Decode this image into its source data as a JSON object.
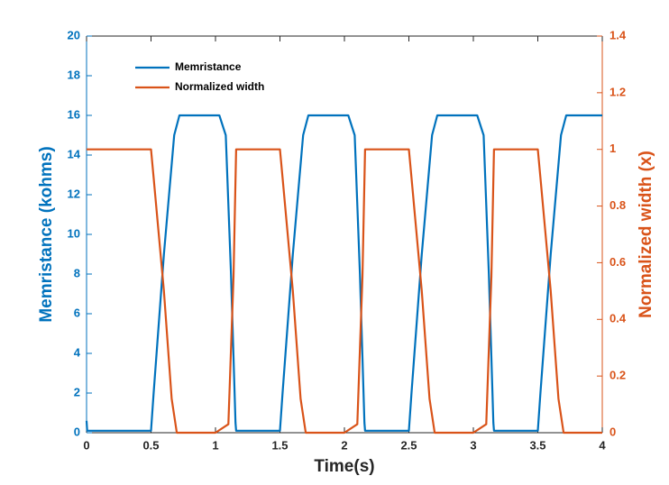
{
  "chart_data": {
    "type": "line",
    "title": "",
    "xlabel": "Time(s)",
    "ylabel_left": "Memristance (kohms)",
    "ylabel_right": "Normalized width (x)",
    "xlim": [
      0,
      4
    ],
    "ylim_left": [
      0,
      20
    ],
    "ylim_right": [
      0,
      1.4
    ],
    "x_ticks": [
      "0",
      "0.5",
      "1",
      "1.5",
      "2",
      "2.5",
      "3",
      "3.5",
      "4"
    ],
    "y_left_ticks": [
      "0",
      "2",
      "4",
      "6",
      "8",
      "10",
      "12",
      "14",
      "16",
      "18",
      "20"
    ],
    "y_right_ticks": [
      "0",
      "0.2",
      "0.4",
      "0.6",
      "0.8",
      "1",
      "1.2",
      "1.4"
    ],
    "grid": false,
    "legend_position": "top-left",
    "series": [
      {
        "name": "Memristance",
        "axis": "left",
        "color": "#0072bd",
        "x": [
          0,
          0.005,
          0.02,
          0.5,
          0.52,
          0.6,
          0.68,
          0.72,
          1.03,
          1.08,
          1.12,
          1.155,
          1.16,
          1.5,
          1.52,
          1.6,
          1.68,
          1.72,
          2.03,
          2.08,
          2.12,
          2.155,
          2.16,
          2.5,
          2.52,
          2.6,
          2.68,
          2.72,
          3.03,
          3.08,
          3.12,
          3.155,
          3.16,
          3.5,
          3.52,
          3.6,
          3.68,
          3.72,
          4.0
        ],
        "y": [
          0.6,
          0.1,
          0.1,
          0.1,
          2.0,
          9.0,
          15.0,
          16.0,
          16.0,
          15.0,
          8.0,
          0.5,
          0.1,
          0.1,
          2.0,
          9.0,
          15.0,
          16.0,
          16.0,
          15.0,
          8.0,
          0.5,
          0.1,
          0.1,
          2.0,
          9.0,
          15.0,
          16.0,
          16.0,
          15.0,
          8.0,
          0.5,
          0.1,
          0.1,
          2.0,
          9.0,
          15.0,
          16.0,
          16.0
        ]
      },
      {
        "name": "Normalized width",
        "axis": "right",
        "color": "#d95319",
        "x": [
          0,
          0.5,
          0.52,
          0.6,
          0.66,
          0.7,
          1.0,
          1.1,
          1.14,
          1.16,
          1.5,
          1.52,
          1.6,
          1.66,
          1.7,
          2.0,
          2.1,
          2.14,
          2.16,
          2.5,
          2.52,
          2.6,
          2.66,
          2.7,
          3.0,
          3.1,
          3.14,
          3.16,
          3.5,
          3.52,
          3.6,
          3.66,
          3.7,
          4.0
        ],
        "y": [
          1.0,
          1.0,
          0.9,
          0.5,
          0.12,
          0.0,
          0.0,
          0.03,
          0.55,
          1.0,
          1.0,
          0.9,
          0.5,
          0.12,
          0.0,
          0.0,
          0.03,
          0.55,
          1.0,
          1.0,
          0.9,
          0.5,
          0.12,
          0.0,
          0.0,
          0.03,
          0.55,
          1.0,
          1.0,
          0.9,
          0.5,
          0.12,
          0.0,
          0.0
        ]
      }
    ]
  }
}
